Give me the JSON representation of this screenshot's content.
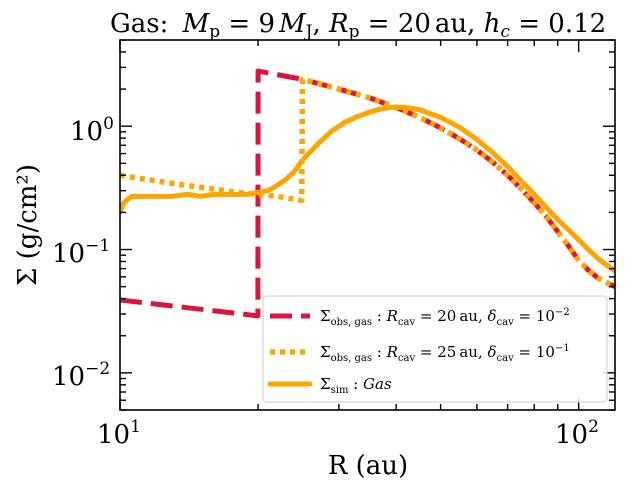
{
  "chart_data": {
    "type": "line",
    "title": "Gas: M_p = 9 M_J, R_p = 20 au, h_c = 0.12",
    "title_parts": {
      "prefix": "Gas:",
      "planet_mass": "9",
      "planet_radius": "20",
      "planet_radius_unit": "au",
      "hc": "0.12"
    },
    "xlabel": "R (au)",
    "ylabel": "Σ (g/cm²)",
    "xscale": "log",
    "yscale": "log",
    "xlim": [
      10,
      120
    ],
    "ylim": [
      0.005,
      5
    ],
    "x_ticks": [
      {
        "value": 10,
        "base": "10",
        "exp": "1"
      },
      {
        "value": 100,
        "base": "10",
        "exp": "2"
      }
    ],
    "y_ticks": [
      {
        "value": 0.01,
        "base": "10",
        "exp": "−2"
      },
      {
        "value": 0.1,
        "base": "10",
        "exp": "−1"
      },
      {
        "value": 1,
        "base": "10",
        "exp": "0"
      }
    ],
    "legend_position": "lower-right",
    "series": [
      {
        "name": "Σ_obs,gas : R_cav = 20 au, δ_cav = 10^−2",
        "legend": {
          "rcav": "20",
          "rcav_unit": "au",
          "delta": "10",
          "delta_exp": "−2"
        },
        "color": "#dc143c",
        "style": "dashed",
        "x": [
          10,
          19.98,
          20,
          25,
          30,
          35,
          40,
          45,
          50,
          55,
          60,
          65,
          70,
          75,
          80,
          85,
          90,
          95,
          100,
          105,
          110,
          115,
          120
        ],
        "y": [
          0.039,
          0.029,
          2.8,
          2.4,
          2.0,
          1.7,
          1.42,
          1.18,
          0.97,
          0.79,
          0.64,
          0.51,
          0.4,
          0.31,
          0.24,
          0.185,
          0.14,
          0.107,
          0.082,
          0.068,
          0.059,
          0.054,
          0.05
        ]
      },
      {
        "name": "Σ_obs,gas : R_cav = 25 au, δ_cav = 10^−1",
        "legend": {
          "rcav": "25",
          "rcav_unit": "au",
          "delta": "10",
          "delta_exp": "−1"
        },
        "color": "#ffa500",
        "style": "dotted",
        "x": [
          10,
          12,
          14,
          16,
          18,
          20,
          22,
          24.9,
          25,
          30,
          35,
          40,
          45,
          50,
          55,
          60,
          65,
          70,
          75,
          80,
          85,
          90,
          95,
          100,
          105,
          110,
          115,
          120
        ],
        "y": [
          0.4,
          0.36,
          0.33,
          0.31,
          0.29,
          0.28,
          0.27,
          0.25,
          2.4,
          2.0,
          1.7,
          1.42,
          1.18,
          0.97,
          0.79,
          0.64,
          0.51,
          0.4,
          0.31,
          0.24,
          0.185,
          0.14,
          0.107,
          0.082,
          0.068,
          0.059,
          0.054,
          0.05
        ]
      },
      {
        "name": "Σ_sim : Gas",
        "legend": {
          "label": "Gas"
        },
        "color": "#ffa500",
        "style": "solid",
        "x": [
          10,
          10.2,
          10.6,
          11,
          12,
          13,
          14,
          15,
          16,
          17,
          18,
          19,
          20,
          21,
          22,
          23,
          24,
          25,
          27,
          29,
          31,
          33,
          35,
          37,
          39,
          42,
          45,
          50,
          55,
          60,
          65,
          70,
          75,
          80,
          85,
          90,
          95,
          100,
          105,
          110,
          115,
          120
        ],
        "y": [
          0.2,
          0.24,
          0.27,
          0.27,
          0.27,
          0.27,
          0.28,
          0.27,
          0.28,
          0.28,
          0.28,
          0.28,
          0.29,
          0.3,
          0.33,
          0.37,
          0.43,
          0.53,
          0.72,
          0.92,
          1.08,
          1.2,
          1.3,
          1.38,
          1.42,
          1.42,
          1.36,
          1.18,
          0.98,
          0.78,
          0.61,
          0.47,
          0.36,
          0.28,
          0.22,
          0.175,
          0.145,
          0.12,
          0.1,
          0.085,
          0.075,
          0.067
        ]
      }
    ]
  }
}
